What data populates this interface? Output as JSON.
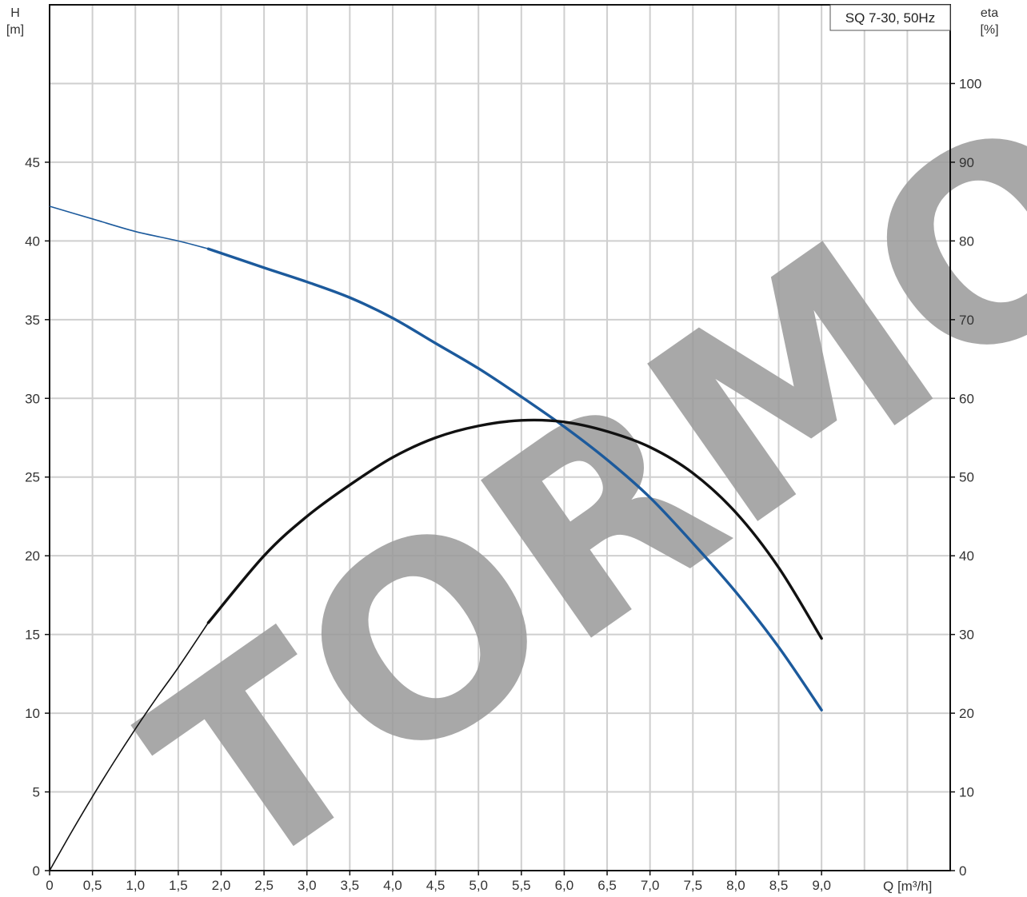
{
  "chart_data": {
    "type": "line",
    "title": "SQ 7-30, 50Hz",
    "left_axis": {
      "label": "H",
      "unit": "[m]",
      "ylim": [
        0,
        55
      ],
      "ticks": [
        "0",
        "5",
        "10",
        "15",
        "20",
        "25",
        "30",
        "35",
        "40",
        "45"
      ]
    },
    "right_axis": {
      "label": "eta",
      "unit": "[%]",
      "ylim": [
        0,
        110
      ],
      "ticks": [
        "0",
        "10",
        "20",
        "30",
        "40",
        "50",
        "60",
        "70",
        "80",
        "90",
        "100"
      ]
    },
    "x_axis": {
      "label": "Q [m³/h]",
      "xlim": [
        0,
        10.5
      ],
      "ticks": [
        "0",
        "0,5",
        "1,0",
        "1,5",
        "2,0",
        "2,5",
        "3,0",
        "3,5",
        "4,0",
        "4,5",
        "5,0",
        "5,5",
        "6,0",
        "6,5",
        "7,0",
        "7,5",
        "8,0",
        "8,5",
        "9,0"
      ]
    },
    "grid": true,
    "legend": "top-right",
    "series": [
      {
        "axis": "left",
        "color": "#1c5a9c",
        "thin_until_x": 1.85,
        "x": [
          0,
          0.5,
          1.0,
          1.5,
          1.85,
          2.5,
          3.0,
          3.5,
          4.0,
          4.5,
          5.0,
          5.5,
          6.0,
          6.5,
          7.0,
          7.5,
          8.0,
          8.5,
          9.0
        ],
        "y": [
          42.2,
          41.4,
          40.6,
          40.0,
          39.5,
          38.3,
          37.4,
          36.4,
          35.1,
          33.5,
          31.9,
          30.1,
          28.2,
          26.1,
          23.7,
          20.8,
          17.7,
          14.2,
          10.2
        ]
      },
      {
        "axis": "right",
        "color": "#111111",
        "thin_until_x": 1.85,
        "x": [
          0,
          0.25,
          0.5,
          0.75,
          1.0,
          1.25,
          1.5,
          1.85,
          2.5,
          3.0,
          3.5,
          4.0,
          4.5,
          5.0,
          5.5,
          6.0,
          6.5,
          7.0,
          7.5,
          8.0,
          8.5,
          9.0
        ],
        "y": [
          0,
          4.8,
          9.4,
          13.8,
          18.0,
          22.0,
          25.8,
          31.5,
          40.0,
          45.0,
          49.0,
          52.5,
          55.0,
          56.5,
          57.2,
          57.0,
          55.8,
          53.8,
          50.5,
          45.5,
          38.5,
          29.5
        ]
      }
    ]
  },
  "watermark": "TORMO"
}
